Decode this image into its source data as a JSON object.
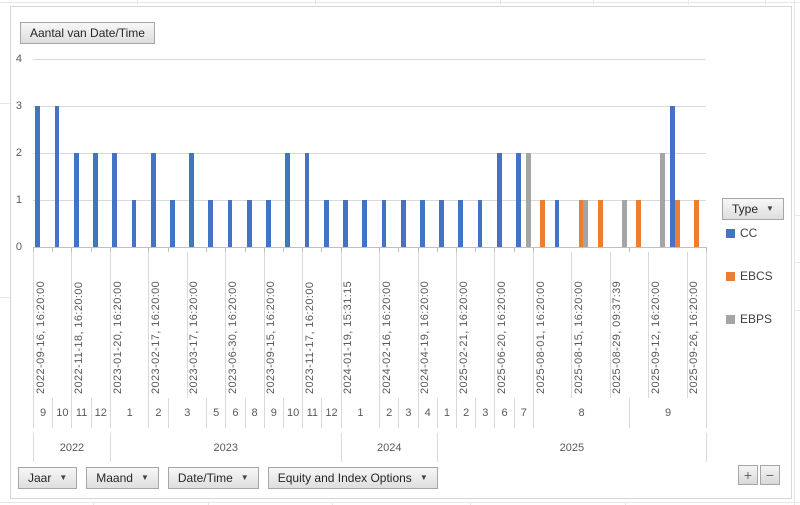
{
  "title_button": "Aantal van Date/Time",
  "legend": {
    "button": "Type",
    "items": [
      {
        "label": "CC",
        "color": "#4472C4"
      },
      {
        "label": "EBCS",
        "color": "#ED7D31"
      },
      {
        "label": "EBPS",
        "color": "#A5A5A5"
      }
    ]
  },
  "field_buttons": [
    {
      "label": "Jaar"
    },
    {
      "label": "Maand"
    },
    {
      "label": "Date/Time"
    },
    {
      "label": "Equity and Index Options"
    }
  ],
  "drill": {
    "expand": "+",
    "collapse": "−"
  },
  "chart_data": {
    "type": "bar",
    "title": "Aantal van Date/Time",
    "xlabel": "",
    "ylabel": "",
    "ylim": [
      0,
      4
    ],
    "yticks": [
      0,
      1,
      2,
      3,
      4
    ],
    "grid": true,
    "legend_position": "right",
    "series_colors": {
      "CC": "#4472C4",
      "EBCS": "#ED7D31",
      "EBPS": "#A5A5A5"
    },
    "slots": [
      {
        "label": "2022-09-16, 16:20:00",
        "bars": [
          [
            "CC",
            3
          ]
        ]
      },
      {
        "bars": [
          [
            "CC",
            3
          ]
        ]
      },
      {
        "label": "2022-11-18, 16:20:00",
        "bars": [
          [
            "CC",
            2
          ]
        ]
      },
      {
        "bars": [
          [
            "CC",
            2
          ]
        ]
      },
      {
        "label": "2023-01-20, 16:20:00",
        "bars": [
          [
            "CC",
            2
          ]
        ]
      },
      {
        "bars": [
          [
            "CC",
            1
          ]
        ]
      },
      {
        "label": "2023-02-17, 16:20:00",
        "bars": [
          [
            "CC",
            2
          ]
        ]
      },
      {
        "bars": [
          [
            "CC",
            1
          ]
        ]
      },
      {
        "label": "2023-03-17, 16:20:00",
        "bars": [
          [
            "CC",
            2
          ]
        ]
      },
      {
        "bars": [
          [
            "CC",
            1
          ]
        ]
      },
      {
        "label": "2023-06-30, 16:20:00",
        "bars": [
          [
            "CC",
            1
          ]
        ]
      },
      {
        "bars": [
          [
            "CC",
            1
          ]
        ]
      },
      {
        "label": "2023-09-15, 16:20:00",
        "bars": [
          [
            "CC",
            1
          ]
        ]
      },
      {
        "bars": [
          [
            "CC",
            2
          ]
        ]
      },
      {
        "label": "2023-11-17, 16:20:00",
        "bars": [
          [
            "CC",
            2
          ]
        ]
      },
      {
        "bars": [
          [
            "CC",
            1
          ]
        ]
      },
      {
        "label": "2024-01-19, 15:31:15",
        "bars": [
          [
            "CC",
            1
          ]
        ]
      },
      {
        "bars": [
          [
            "CC",
            1
          ]
        ]
      },
      {
        "label": "2024-02-16, 16:20:00",
        "bars": [
          [
            "CC",
            1
          ]
        ]
      },
      {
        "bars": [
          [
            "CC",
            1
          ]
        ]
      },
      {
        "label": "2024-04-19, 16:20:00",
        "bars": [
          [
            "CC",
            1
          ]
        ]
      },
      {
        "bars": [
          [
            "CC",
            1
          ]
        ]
      },
      {
        "label": "2025-02-21, 16:20:00",
        "bars": [
          [
            "CC",
            1
          ]
        ]
      },
      {
        "bars": [
          [
            "CC",
            1
          ]
        ]
      },
      {
        "label": "2025-06-20, 16:20:00",
        "bars": [
          [
            "CC",
            2
          ]
        ]
      },
      {
        "bars": [
          [
            "CC",
            2
          ],
          [
            "EBPS",
            2
          ]
        ]
      },
      {
        "label": "2025-08-01, 16:20:00",
        "bars": [
          [
            "EBCS",
            1
          ]
        ]
      },
      {
        "bars": [
          [
            "CC",
            1
          ]
        ]
      },
      {
        "label": "2025-08-15, 16:20:00",
        "bars": [
          [
            "EBCS",
            1
          ],
          [
            "EBPS",
            1
          ]
        ]
      },
      {
        "bars": [
          [
            "EBCS",
            1
          ]
        ]
      },
      {
        "label": "2025-08-29, 09:37:39",
        "bars": [
          [
            "EBPS",
            1
          ]
        ]
      },
      {
        "bars": [
          [
            "EBCS",
            1
          ]
        ]
      },
      {
        "label": "2025-09-12, 16:20:00",
        "bars": [
          [
            "EBPS",
            2
          ]
        ]
      },
      {
        "bars": [
          [
            "CC",
            3
          ],
          [
            "EBCS",
            1
          ]
        ]
      },
      {
        "label": "2025-09-26, 16:20:00",
        "bars": [
          [
            "EBCS",
            1
          ]
        ]
      }
    ],
    "month_cells": [
      {
        "label": "9",
        "span": 1
      },
      {
        "label": "10",
        "span": 1
      },
      {
        "label": "11",
        "span": 1
      },
      {
        "label": "12",
        "span": 1
      },
      {
        "label": "1",
        "span": 2
      },
      {
        "label": "2",
        "span": 1
      },
      {
        "label": "3",
        "span": 2
      },
      {
        "label": "5",
        "span": 1
      },
      {
        "label": "6",
        "span": 1
      },
      {
        "label": "8",
        "span": 1
      },
      {
        "label": "9",
        "span": 1
      },
      {
        "label": "10",
        "span": 1
      },
      {
        "label": "11",
        "span": 1
      },
      {
        "label": "12",
        "span": 1
      },
      {
        "label": "1",
        "span": 2
      },
      {
        "label": "2",
        "span": 1
      },
      {
        "label": "3",
        "span": 1
      },
      {
        "label": "4",
        "span": 1
      },
      {
        "label": "1",
        "span": 1
      },
      {
        "label": "2",
        "span": 1
      },
      {
        "label": "3",
        "span": 1
      },
      {
        "label": "6",
        "span": 1
      },
      {
        "label": "7",
        "span": 1
      },
      {
        "label": "8",
        "span": 5
      },
      {
        "label": "9",
        "span": 4
      }
    ],
    "year_cells": [
      {
        "label": "2022",
        "span": 4
      },
      {
        "label": "2023",
        "span": 12
      },
      {
        "label": "2024",
        "span": 5
      },
      {
        "label": "2025",
        "span": 14
      }
    ]
  }
}
